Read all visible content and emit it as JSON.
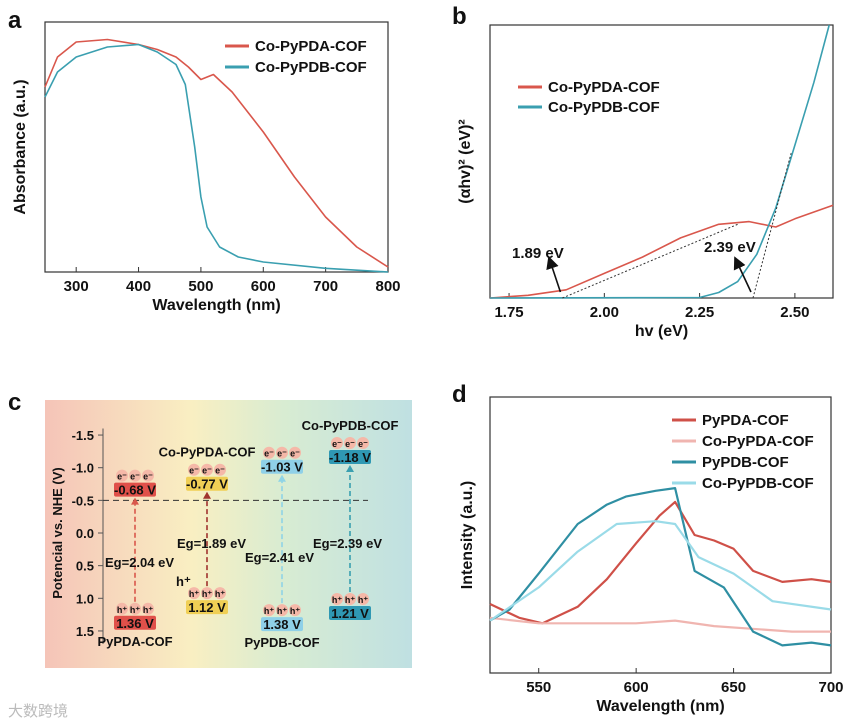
{
  "watermark": "大数跨境",
  "chart_data": [
    {
      "panel": "a",
      "type": "line",
      "xlabel": "Wavelength (nm)",
      "ylabel": "Absorbance (a.u.)",
      "xlim": [
        250,
        800
      ],
      "ylim": [
        0,
        1
      ],
      "xticks": [
        300,
        400,
        500,
        600,
        700,
        800
      ],
      "legend_position": "top-right",
      "series": [
        {
          "name": "Co-PyPDA-COF",
          "color": "#d9574c",
          "x": [
            250,
            270,
            300,
            350,
            400,
            430,
            460,
            480,
            500,
            520,
            550,
            600,
            650,
            700,
            750,
            800
          ],
          "y": [
            0.74,
            0.86,
            0.92,
            0.93,
            0.91,
            0.89,
            0.86,
            0.82,
            0.77,
            0.79,
            0.72,
            0.56,
            0.38,
            0.22,
            0.1,
            0.02
          ]
        },
        {
          "name": "Co-PyPDB-COF",
          "color": "#3a9fb0",
          "x": [
            250,
            270,
            300,
            350,
            400,
            430,
            460,
            475,
            490,
            500,
            510,
            530,
            560,
            600,
            700,
            800
          ],
          "y": [
            0.7,
            0.8,
            0.86,
            0.9,
            0.91,
            0.88,
            0.83,
            0.75,
            0.5,
            0.3,
            0.18,
            0.1,
            0.06,
            0.04,
            0.015,
            0.0
          ]
        }
      ]
    },
    {
      "panel": "b",
      "type": "line",
      "xlabel": "hv (eV)",
      "ylabel": "(αhv)² (eV)²",
      "xlim": [
        1.7,
        2.6
      ],
      "ylim": [
        0,
        1
      ],
      "xticks": [
        "1.75",
        "2.00",
        "2.25",
        "2.50"
      ],
      "legend_position": "top-left",
      "annotations": [
        "1.89 eV",
        "2.39 eV"
      ],
      "band_gaps": [
        1.89,
        2.39
      ],
      "series": [
        {
          "name": "Co-PyPDA-COF",
          "color": "#d9574c",
          "x": [
            1.7,
            1.8,
            1.9,
            2.0,
            2.1,
            2.2,
            2.3,
            2.38,
            2.45,
            2.5,
            2.6
          ],
          "y": [
            0.0,
            0.01,
            0.03,
            0.09,
            0.15,
            0.22,
            0.27,
            0.28,
            0.26,
            0.29,
            0.34
          ]
        },
        {
          "name": "Co-PyPDB-COF",
          "color": "#3a9fb0",
          "x": [
            1.7,
            2.25,
            2.3,
            2.35,
            2.4,
            2.45,
            2.5,
            2.55,
            2.59
          ],
          "y": [
            0,
            0.002,
            0.02,
            0.06,
            0.16,
            0.33,
            0.56,
            0.79,
            1.0
          ]
        }
      ]
    },
    {
      "panel": "c",
      "type": "diagram",
      "ylabel": "Potencial vs. NHE (V)",
      "ylim": [
        -1.5,
        1.5
      ],
      "yticks": [
        "-1.5",
        "-1.0",
        "-0.5",
        "0.0",
        "0.5",
        "1.0",
        "1.5"
      ],
      "reference_line": -0.5,
      "electron_label": "e⁻",
      "hole_label": "h⁺",
      "stray_label": "h⁺",
      "materials": [
        {
          "name": "PyPDA-COF",
          "cb": -0.68,
          "vb": 1.36,
          "cb_label": "-0.68 V",
          "vb_label": "1.36 V",
          "eg_label": "Eg=2.04 eV",
          "color": "#e0504a",
          "arrow": "#d9574c",
          "name_pos": "bottom"
        },
        {
          "name": "Co-PyPDA-COF",
          "cb": -0.77,
          "vb": 1.12,
          "cb_label": "-0.77 V",
          "vb_label": "1.12 V",
          "eg_label": "Eg=1.89 eV",
          "color": "#f0cf55",
          "arrow": "#a0332e",
          "name_pos": "top"
        },
        {
          "name": "PyPDB-COF",
          "cb": -1.03,
          "vb": 1.38,
          "cb_label": "-1.03 V",
          "vb_label": "1.38 V",
          "eg_label": "Eg=2.41 eV",
          "color": "#8fd0e8",
          "arrow": "#8fd4e6",
          "name_pos": "bottom"
        },
        {
          "name": "Co-PyPDB-COF",
          "cb": -1.18,
          "vb": 1.21,
          "cb_label": "-1.18 V",
          "vb_label": "1.21 V",
          "eg_label": "Eg=2.39 eV",
          "color": "#2f98b3",
          "arrow": "#3a9fb0",
          "name_pos": "top"
        }
      ]
    },
    {
      "panel": "d",
      "type": "line",
      "xlabel": "Wavelength (nm)",
      "ylabel": "Intensity (a.u.)",
      "xlim": [
        525,
        700
      ],
      "ylim": [
        0,
        1
      ],
      "xticks": [
        550,
        600,
        650,
        700
      ],
      "legend_position": "top-right",
      "series": [
        {
          "name": "PyPDA-COF",
          "color": "#cf5048",
          "x": [
            525,
            540,
            552,
            570,
            585,
            600,
            612,
            620,
            630,
            640,
            650,
            660,
            675,
            690,
            700
          ],
          "y": [
            0.25,
            0.2,
            0.18,
            0.24,
            0.34,
            0.47,
            0.57,
            0.62,
            0.5,
            0.48,
            0.45,
            0.37,
            0.33,
            0.34,
            0.33
          ]
        },
        {
          "name": "Co-PyPDA-COF",
          "color": "#f0b5b0",
          "x": [
            525,
            550,
            600,
            620,
            640,
            680,
            700
          ],
          "y": [
            0.2,
            0.18,
            0.18,
            0.19,
            0.17,
            0.15,
            0.15
          ]
        },
        {
          "name": "PyPDB-COF",
          "color": "#2f8fa3",
          "x": [
            525,
            535,
            550,
            570,
            585,
            595,
            610,
            620,
            630,
            645,
            660,
            675,
            690,
            700
          ],
          "y": [
            0.19,
            0.23,
            0.36,
            0.54,
            0.61,
            0.64,
            0.66,
            0.67,
            0.37,
            0.31,
            0.15,
            0.1,
            0.11,
            0.1
          ]
        },
        {
          "name": "Co-PyPDB-COF",
          "color": "#9adbe8",
          "x": [
            525,
            550,
            570,
            590,
            610,
            620,
            632,
            650,
            670,
            700
          ],
          "y": [
            0.19,
            0.31,
            0.44,
            0.54,
            0.55,
            0.54,
            0.42,
            0.36,
            0.26,
            0.23
          ]
        }
      ]
    }
  ],
  "panels": {
    "a": "a",
    "b": "b",
    "c": "c",
    "d": "d"
  }
}
